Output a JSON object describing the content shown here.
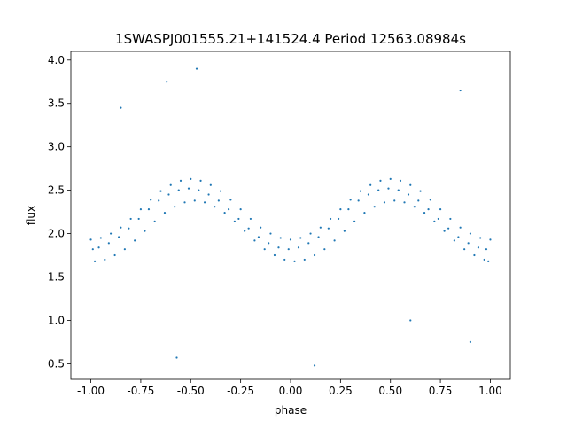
{
  "chart_data": {
    "type": "scatter",
    "title": "1SWASPJ001555.21+141524.4 Period 12563.08984s",
    "xlabel": "phase",
    "ylabel": "flux",
    "xlim": [
      -1.1,
      1.1
    ],
    "ylim": [
      0.32,
      4.1
    ],
    "xticks": [
      "-1.00",
      "-0.75",
      "-0.50",
      "-0.25",
      "0.00",
      "0.25",
      "0.50",
      "0.75",
      "1.00"
    ],
    "yticks": [
      "0.5",
      "1.0",
      "1.5",
      "2.0",
      "2.5",
      "3.0",
      "3.5",
      "4.0"
    ],
    "grid": false,
    "color": "#1f77b4",
    "points": [
      [
        -1,
        1.93
      ],
      [
        -0.98,
        1.68
      ],
      [
        -0.99,
        1.82
      ],
      [
        -0.95,
        1.95
      ],
      [
        -0.93,
        1.7
      ],
      [
        -0.96,
        1.84
      ],
      [
        -0.9,
        2.0
      ],
      [
        -0.88,
        1.75
      ],
      [
        -0.91,
        1.89
      ],
      [
        -0.85,
        2.07
      ],
      [
        -0.83,
        1.82
      ],
      [
        -0.86,
        1.96
      ],
      [
        -0.8,
        2.17
      ],
      [
        -0.78,
        1.92
      ],
      [
        -0.81,
        2.06
      ],
      [
        -0.75,
        2.28
      ],
      [
        -0.73,
        2.03
      ],
      [
        -0.76,
        2.17
      ],
      [
        -0.7,
        2.39
      ],
      [
        -0.68,
        2.14
      ],
      [
        -0.71,
        2.28
      ],
      [
        -0.65,
        2.49
      ],
      [
        -0.63,
        2.24
      ],
      [
        -0.66,
        2.38
      ],
      [
        -0.6,
        2.56
      ],
      [
        -0.58,
        2.31
      ],
      [
        -0.61,
        2.45
      ],
      [
        -0.55,
        2.61
      ],
      [
        -0.53,
        2.36
      ],
      [
        -0.56,
        2.5
      ],
      [
        -0.5,
        2.63
      ],
      [
        -0.48,
        2.38
      ],
      [
        -0.51,
        2.52
      ],
      [
        -0.45,
        2.61
      ],
      [
        -0.43,
        2.36
      ],
      [
        -0.46,
        2.5
      ],
      [
        -0.4,
        2.56
      ],
      [
        -0.38,
        2.31
      ],
      [
        -0.41,
        2.45
      ],
      [
        -0.35,
        2.49
      ],
      [
        -0.33,
        2.24
      ],
      [
        -0.36,
        2.38
      ],
      [
        -0.3,
        2.39
      ],
      [
        -0.28,
        2.14
      ],
      [
        -0.31,
        2.28
      ],
      [
        -0.25,
        2.28
      ],
      [
        -0.23,
        2.03
      ],
      [
        -0.26,
        2.17
      ],
      [
        -0.2,
        2.17
      ],
      [
        -0.18,
        1.92
      ],
      [
        -0.21,
        2.06
      ],
      [
        -0.15,
        2.07
      ],
      [
        -0.13,
        1.82
      ],
      [
        -0.16,
        1.96
      ],
      [
        -0.1,
        2.0
      ],
      [
        -0.08,
        1.75
      ],
      [
        -0.11,
        1.89
      ],
      [
        -0.05,
        1.95
      ],
      [
        -0.03,
        1.7
      ],
      [
        -0.06,
        1.84
      ],
      [
        0,
        1.93
      ],
      [
        0.02,
        1.68
      ],
      [
        -0.01,
        1.82
      ],
      [
        0.05,
        1.95
      ],
      [
        0.07,
        1.7
      ],
      [
        0.04,
        1.84
      ],
      [
        0.1,
        2.0
      ],
      [
        0.12,
        1.75
      ],
      [
        0.09,
        1.89
      ],
      [
        0.15,
        2.07
      ],
      [
        0.17,
        1.82
      ],
      [
        0.14,
        1.96
      ],
      [
        0.2,
        2.17
      ],
      [
        0.22,
        1.92
      ],
      [
        0.19,
        2.06
      ],
      [
        0.25,
        2.28
      ],
      [
        0.27,
        2.03
      ],
      [
        0.24,
        2.17
      ],
      [
        0.3,
        2.39
      ],
      [
        0.32,
        2.14
      ],
      [
        0.29,
        2.28
      ],
      [
        0.35,
        2.49
      ],
      [
        0.37,
        2.24
      ],
      [
        0.34,
        2.38
      ],
      [
        0.4,
        2.56
      ],
      [
        0.42,
        2.31
      ],
      [
        0.39,
        2.45
      ],
      [
        0.45,
        2.61
      ],
      [
        0.47,
        2.36
      ],
      [
        0.44,
        2.5
      ],
      [
        0.5,
        2.63
      ],
      [
        0.52,
        2.38
      ],
      [
        0.49,
        2.52
      ],
      [
        0.55,
        2.61
      ],
      [
        0.57,
        2.36
      ],
      [
        0.54,
        2.5
      ],
      [
        0.6,
        2.56
      ],
      [
        0.62,
        2.31
      ],
      [
        0.59,
        2.45
      ],
      [
        0.65,
        2.49
      ],
      [
        0.67,
        2.24
      ],
      [
        0.64,
        2.38
      ],
      [
        0.7,
        2.39
      ],
      [
        0.72,
        2.14
      ],
      [
        0.69,
        2.28
      ],
      [
        0.75,
        2.28
      ],
      [
        0.77,
        2.03
      ],
      [
        0.74,
        2.17
      ],
      [
        0.8,
        2.17
      ],
      [
        0.82,
        1.92
      ],
      [
        0.79,
        2.06
      ],
      [
        0.85,
        2.07
      ],
      [
        0.87,
        1.82
      ],
      [
        0.84,
        1.96
      ],
      [
        0.9,
        2.0
      ],
      [
        0.92,
        1.75
      ],
      [
        0.89,
        1.89
      ],
      [
        0.95,
        1.95
      ],
      [
        0.97,
        1.7
      ],
      [
        0.94,
        1.84
      ],
      [
        1.0,
        1.93
      ],
      [
        0.99,
        1.68
      ],
      [
        0.98,
        1.82
      ],
      [
        -0.62,
        3.75
      ],
      [
        0.85,
        3.65
      ],
      [
        -0.85,
        3.45
      ],
      [
        0.12,
        0.48
      ],
      [
        -0.57,
        0.57
      ],
      [
        0.9,
        0.75
      ],
      [
        -0.47,
        3.9
      ],
      [
        0.6,
        1.0
      ]
    ]
  }
}
